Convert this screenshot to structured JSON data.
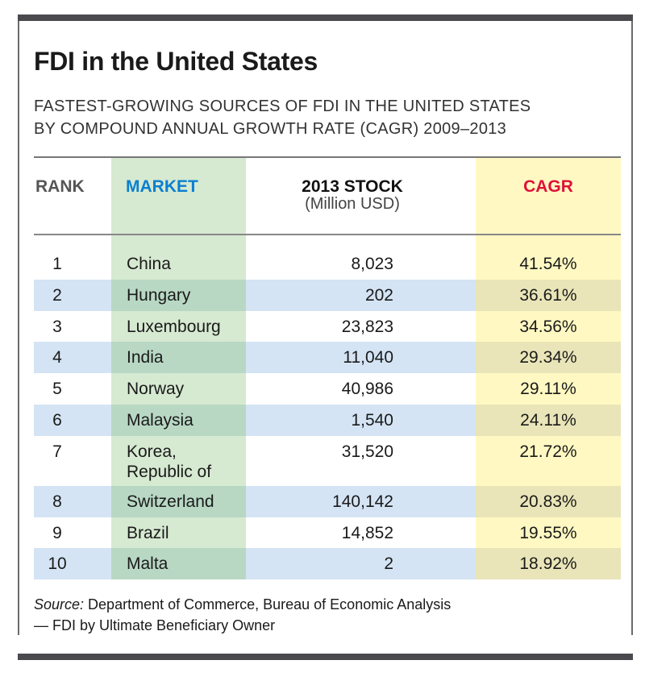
{
  "title": "FDI in the United States",
  "subtitle": [
    "FASTEST-GROWING SOURCES OF FDI IN THE UNITED STATES",
    "BY COMPOUND ANNUAL GROWTH RATE (CAGR) 2009–2013"
  ],
  "colors": {
    "market_header": "#0a7fd0",
    "cagr_header": "#e0103a",
    "market_column": "#d6e9d1",
    "cagr_column": "#fff8c2",
    "alt_row": "#d4e4f4"
  },
  "chart_data": {
    "type": "table",
    "columns": [
      {
        "label": "RANK"
      },
      {
        "label": "MARKET"
      },
      {
        "label": "2013 STOCK",
        "sublabel": "(Million USD)"
      },
      {
        "label": "CAGR"
      }
    ],
    "rows": [
      {
        "rank": "1",
        "market": [
          "China"
        ],
        "stock": "8,023",
        "cagr": "41.54%"
      },
      {
        "rank": "2",
        "market": [
          "Hungary"
        ],
        "stock": "202",
        "cagr": "36.61%"
      },
      {
        "rank": "3",
        "market": [
          "Luxembourg"
        ],
        "stock": "23,823",
        "cagr": "34.56%"
      },
      {
        "rank": "4",
        "market": [
          "India"
        ],
        "stock": "11,040",
        "cagr": "29.34%"
      },
      {
        "rank": "5",
        "market": [
          "Norway"
        ],
        "stock": "40,986",
        "cagr": "29.11%"
      },
      {
        "rank": "6",
        "market": [
          "Malaysia"
        ],
        "stock": "1,540",
        "cagr": "24.11%"
      },
      {
        "rank": "7",
        "market": [
          "Korea,",
          "Republic of"
        ],
        "stock": "31,520",
        "cagr": "21.72%"
      },
      {
        "rank": "8",
        "market": [
          "Switzerland"
        ],
        "stock": "140,142",
        "cagr": "20.83%"
      },
      {
        "rank": "9",
        "market": [
          "Brazil"
        ],
        "stock": "14,852",
        "cagr": "19.55%"
      },
      {
        "rank": "10",
        "market": [
          "Malta"
        ],
        "stock": "2",
        "cagr": "18.92%"
      }
    ]
  },
  "source": {
    "label": "Source:",
    "text": " Department of Commerce, Bureau of Economic Analysis",
    "line2": "— FDI by Ultimate Beneficiary Owner"
  }
}
